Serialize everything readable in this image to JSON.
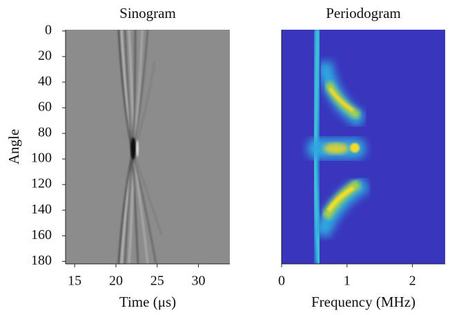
{
  "chart_data": [
    {
      "type": "image",
      "title": "Sinogram",
      "xlabel": "Time (μs)",
      "ylabel": "Angle",
      "xlim": [
        13.9,
        33.8
      ],
      "xticks": [
        15,
        20,
        25,
        30
      ],
      "ylim": [
        182,
        -1
      ],
      "yticks": [
        0,
        20,
        40,
        60,
        80,
        100,
        120,
        140,
        160,
        180
      ]
    },
    {
      "type": "image",
      "title": "Periodogram",
      "xlabel": "Frequency (MHz)",
      "xlim": [
        0,
        2.5
      ],
      "xticks": [
        0,
        1,
        2
      ],
      "ylim": [
        182,
        -1
      ]
    }
  ]
}
